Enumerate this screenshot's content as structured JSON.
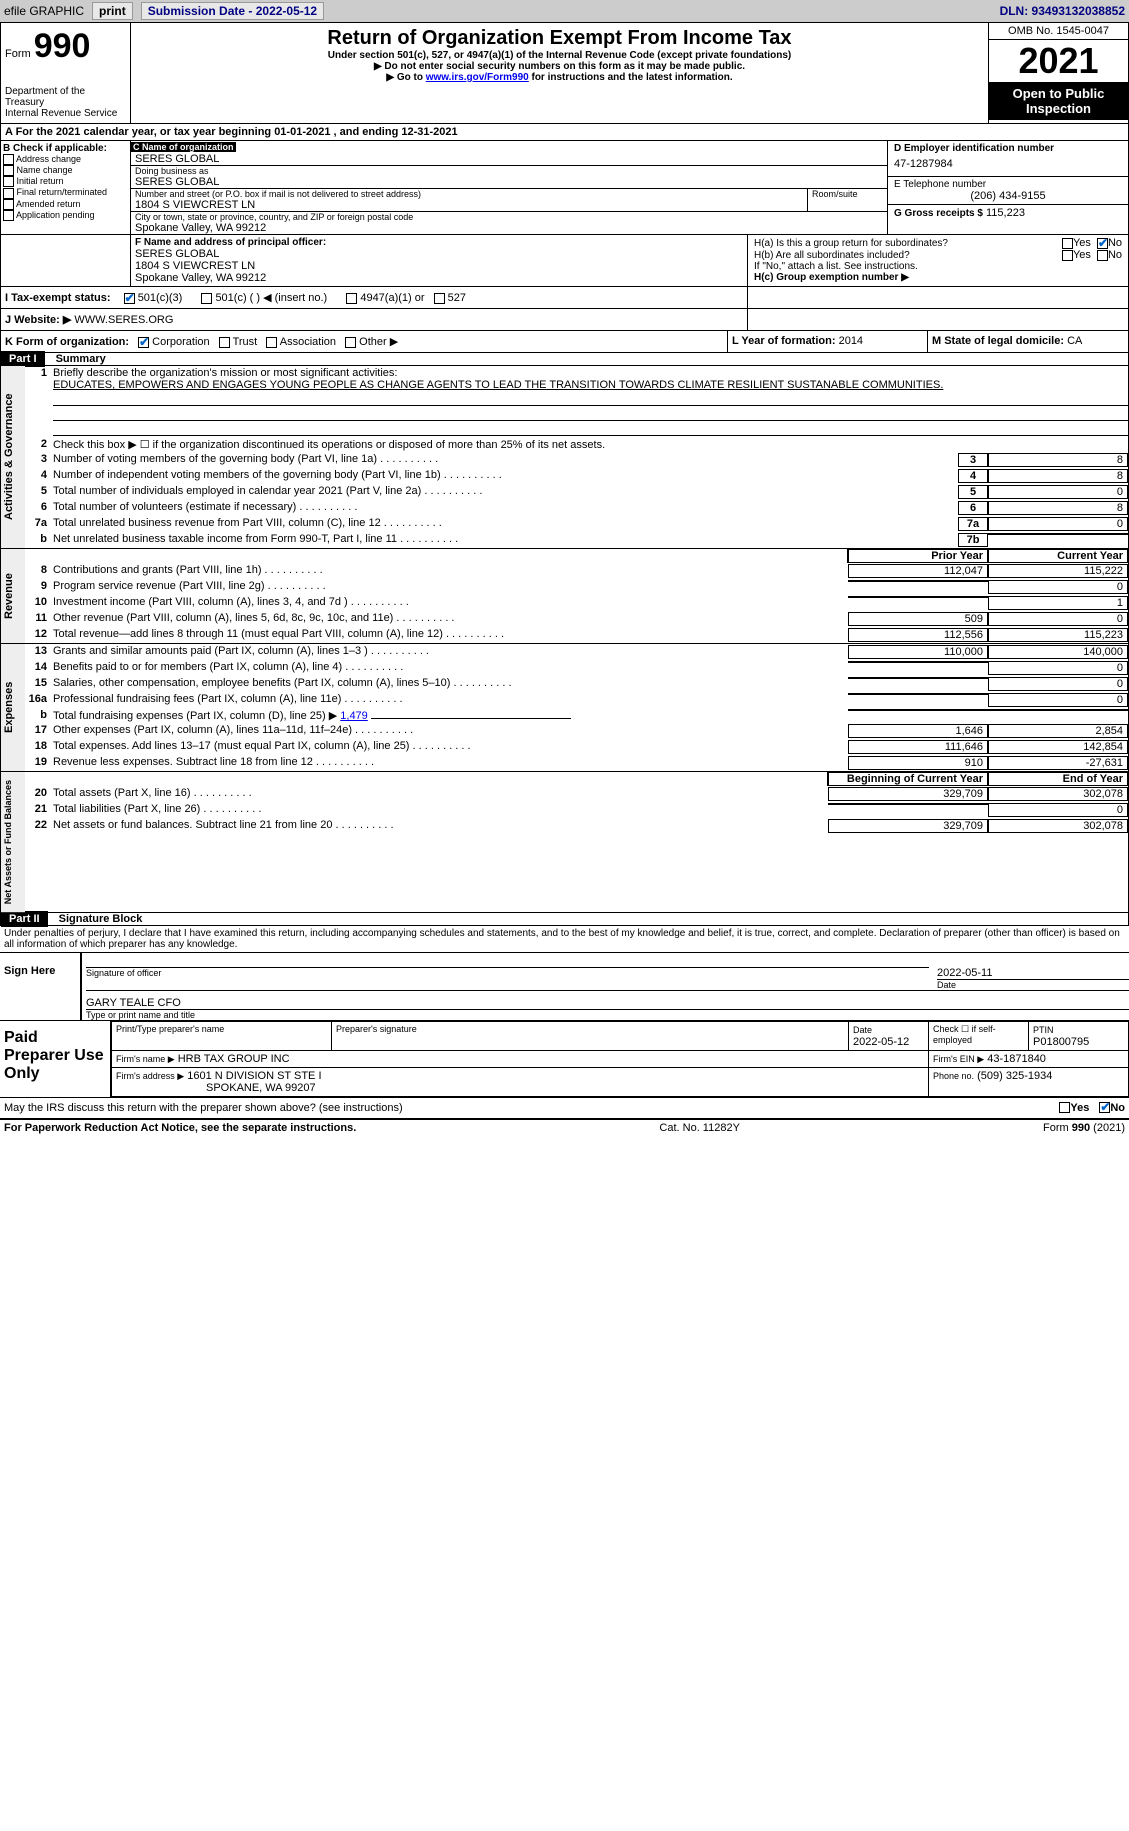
{
  "topbar": {
    "efile": "efile GRAPHIC",
    "print": "print",
    "subdate_label": "Submission Date - 2022-05-12",
    "dln": "DLN: 93493132038852"
  },
  "header": {
    "form_label": "Form",
    "form_number": "990",
    "dept": "Department of the Treasury",
    "irs": "Internal Revenue Service",
    "title": "Return of Organization Exempt From Income Tax",
    "subtitle": "Under section 501(c), 527, or 4947(a)(1) of the Internal Revenue Code (except private foundations)",
    "note1": "▶ Do not enter social security numbers on this form as it may be made public.",
    "note2_pre": "▶ Go to ",
    "note2_link": "www.irs.gov/Form990",
    "note2_post": " for instructions and the latest information.",
    "omb": "OMB No. 1545-0047",
    "year": "2021",
    "inspection": "Open to Public Inspection"
  },
  "periodA": "A For the 2021 calendar year, or tax year beginning 01-01-2021   , and ending 12-31-2021",
  "boxB": {
    "label": "B Check if applicable:",
    "items": [
      "Address change",
      "Name change",
      "Initial return",
      "Final return/terminated",
      "Amended return",
      "Application pending"
    ]
  },
  "boxC": {
    "name_label": "C Name of organization",
    "name": "SERES GLOBAL",
    "dba_label": "Doing business as",
    "dba": "SERES GLOBAL",
    "street_label": "Number and street (or P.O. box if mail is not delivered to street address)",
    "room_label": "Room/suite",
    "street": "1804 S VIEWCREST LN",
    "city_label": "City or town, state or province, country, and ZIP or foreign postal code",
    "city": "Spokane Valley, WA  99212"
  },
  "boxD": {
    "label": "D Employer identification number",
    "value": "47-1287984"
  },
  "boxE": {
    "label": "E Telephone number",
    "value": "(206) 434-9155"
  },
  "boxG": {
    "label": "G Gross receipts $",
    "value": "115,223"
  },
  "boxF": {
    "label": "F Name and address of principal officer:",
    "name": "SERES GLOBAL",
    "addr1": "1804 S VIEWCREST LN",
    "addr2": "Spokane Valley, WA  99212"
  },
  "boxH": {
    "a": "H(a)  Is this a group return for subordinates?",
    "b": "H(b)  Are all subordinates included?",
    "note": "If \"No,\" attach a list. See instructions.",
    "c": "H(c)  Group exemption number ▶",
    "yes": "Yes",
    "no": "No"
  },
  "boxI": {
    "label": "I   Tax-exempt status:",
    "opt1": "501(c)(3)",
    "opt2": "501(c) (  ) ◀ (insert no.)",
    "opt3": "4947(a)(1) or",
    "opt4": "527"
  },
  "boxJ": {
    "label": "J   Website: ▶",
    "value": "WWW.SERES.ORG"
  },
  "boxK": {
    "label": "K Form of organization:",
    "corp": "Corporation",
    "trust": "Trust",
    "assoc": "Association",
    "other": "Other ▶"
  },
  "boxL": {
    "label": "L Year of formation:",
    "value": "2014"
  },
  "boxM": {
    "label": "M State of legal domicile:",
    "value": "CA"
  },
  "part1": {
    "label": "Part I",
    "title": "Summary"
  },
  "summary": {
    "activities_label": "Activities & Governance",
    "revenue_label": "Revenue",
    "expenses_label": "Expenses",
    "netassets_label": "Net Assets or Fund Balances",
    "line1_label": "Briefly describe the organization's mission or most significant activities:",
    "line1_text": "EDUCATES, EMPOWERS AND ENGAGES YOUNG PEOPLE AS CHANGE AGENTS TO LEAD THE TRANSITION TOWARDS CLIMATE RESILIENT SUSTANABLE COMMUNITIES.",
    "line2": "Check this box ▶ ☐ if the organization discontinued its operations or disposed of more than 25% of its net assets.",
    "rows_top": [
      {
        "n": "3",
        "t": "Number of voting members of the governing body (Part VI, line 1a)",
        "box": "3",
        "v": "8"
      },
      {
        "n": "4",
        "t": "Number of independent voting members of the governing body (Part VI, line 1b)",
        "box": "4",
        "v": "8"
      },
      {
        "n": "5",
        "t": "Total number of individuals employed in calendar year 2021 (Part V, line 2a)",
        "box": "5",
        "v": "0"
      },
      {
        "n": "6",
        "t": "Total number of volunteers (estimate if necessary)",
        "box": "6",
        "v": "8"
      },
      {
        "n": "7a",
        "t": "Total unrelated business revenue from Part VIII, column (C), line 12",
        "box": "7a",
        "v": "0"
      },
      {
        "n": "b",
        "t": "Net unrelated business taxable income from Form 990-T, Part I, line 11",
        "box": "7b",
        "v": ""
      }
    ],
    "col_prior": "Prior Year",
    "col_current": "Current Year",
    "col_begin": "Beginning of Current Year",
    "col_end": "End of Year",
    "revenue_rows": [
      {
        "n": "8",
        "t": "Contributions and grants (Part VIII, line 1h)",
        "p": "112,047",
        "c": "115,222"
      },
      {
        "n": "9",
        "t": "Program service revenue (Part VIII, line 2g)",
        "p": "",
        "c": "0"
      },
      {
        "n": "10",
        "t": "Investment income (Part VIII, column (A), lines 3, 4, and 7d )",
        "p": "",
        "c": "1"
      },
      {
        "n": "11",
        "t": "Other revenue (Part VIII, column (A), lines 5, 6d, 8c, 9c, 10c, and 11e)",
        "p": "509",
        "c": "0"
      },
      {
        "n": "12",
        "t": "Total revenue—add lines 8 through 11 (must equal Part VIII, column (A), line 12)",
        "p": "112,556",
        "c": "115,223"
      }
    ],
    "expense_rows": [
      {
        "n": "13",
        "t": "Grants and similar amounts paid (Part IX, column (A), lines 1–3 )",
        "p": "110,000",
        "c": "140,000"
      },
      {
        "n": "14",
        "t": "Benefits paid to or for members (Part IX, column (A), line 4)",
        "p": "",
        "c": "0"
      },
      {
        "n": "15",
        "t": "Salaries, other compensation, employee benefits (Part IX, column (A), lines 5–10)",
        "p": "",
        "c": "0"
      },
      {
        "n": "16a",
        "t": "Professional fundraising fees (Part IX, column (A), line 11e)",
        "p": "",
        "c": "0"
      }
    ],
    "line16b_pre": "Total fundraising expenses (Part IX, column (D), line 25) ▶",
    "line16b_val": "1,479",
    "expense_rows2": [
      {
        "n": "17",
        "t": "Other expenses (Part IX, column (A), lines 11a–11d, 11f–24e)",
        "p": "1,646",
        "c": "2,854"
      },
      {
        "n": "18",
        "t": "Total expenses. Add lines 13–17 (must equal Part IX, column (A), line 25)",
        "p": "111,646",
        "c": "142,854"
      },
      {
        "n": "19",
        "t": "Revenue less expenses. Subtract line 18 from line 12",
        "p": "910",
        "c": "-27,631"
      }
    ],
    "asset_rows": [
      {
        "n": "20",
        "t": "Total assets (Part X, line 16)",
        "p": "329,709",
        "c": "302,078"
      },
      {
        "n": "21",
        "t": "Total liabilities (Part X, line 26)",
        "p": "",
        "c": "0"
      },
      {
        "n": "22",
        "t": "Net assets or fund balances. Subtract line 21 from line 20",
        "p": "329,709",
        "c": "302,078"
      }
    ]
  },
  "part2": {
    "label": "Part II",
    "title": "Signature Block"
  },
  "sig": {
    "declaration": "Under penalties of perjury, I declare that I have examined this return, including accompanying schedules and statements, and to the best of my knowledge and belief, it is true, correct, and complete. Declaration of preparer (other than officer) is based on all information of which preparer has any knowledge.",
    "signhere": "Sign Here",
    "officer_sig": "Signature of officer",
    "date": "Date",
    "sig_date": "2022-05-11",
    "officer_name": "GARY TEALE  CFO",
    "typed_label": "Type or print name and title",
    "paid": "Paid Preparer Use Only",
    "prep_name_label": "Print/Type preparer's name",
    "prep_sig_label": "Preparer's signature",
    "prep_date_label": "Date",
    "prep_date": "2022-05-12",
    "check_label": "Check ☐ if self-employed",
    "ptin_label": "PTIN",
    "ptin": "P01800795",
    "firm_name_label": "Firm's name    ▶",
    "firm_name": "HRB TAX GROUP INC",
    "firm_ein_label": "Firm's EIN ▶",
    "firm_ein": "43-1871840",
    "firm_addr_label": "Firm's address ▶",
    "firm_addr1": "1601 N DIVISION ST STE I",
    "firm_addr2": "SPOKANE, WA  99207",
    "phone_label": "Phone no.",
    "phone": "(509) 325-1934",
    "discuss": "May the IRS discuss this return with the preparer shown above? (see instructions)",
    "yes": "Yes",
    "no": "No"
  },
  "footer": {
    "notice": "For Paperwork Reduction Act Notice, see the separate instructions.",
    "cat": "Cat. No. 11282Y",
    "form": "Form 990 (2021)"
  }
}
